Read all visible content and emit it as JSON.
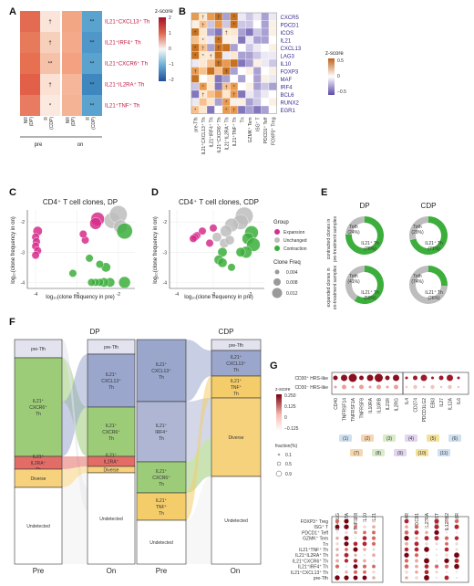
{
  "panels": [
    "A",
    "B",
    "C",
    "D",
    "E",
    "F",
    "G"
  ],
  "colors": {
    "red": "#c0143c",
    "purple": "#3a2a8a",
    "expansion": "#d62d8c",
    "unchanged": "#bdbdbd",
    "contraction": "#3cae3c",
    "pre_tfh": "#e2e3ef",
    "cxcl13": "#9aa6cc",
    "irf4": "#aeb6d4",
    "cxcr6": "#9ccc78",
    "il2ra": "#e36d66",
    "tnf": "#f4cd6a",
    "diverse": "#f6d27c",
    "undetected": "#ffffff"
  },
  "panelA": {
    "legend_title": "z-score",
    "legend_ticks": [
      "2",
      "1",
      "0",
      "−1",
      "−2"
    ],
    "rows": [
      {
        "label": "IL21⁺CXCL13⁺ Th",
        "cells": [
          "#e36b52",
          "#fbe4da",
          "#f3a684",
          "#5aa3cf"
        ],
        "marks": [
          "",
          "†",
          "",
          "**"
        ]
      },
      {
        "label": "IL21⁺IRF4⁺ Th",
        "cells": [
          "#e87a5c",
          "#f7d0bb",
          "#f4aa8a",
          "#4f97c8"
        ],
        "marks": [
          "",
          "†",
          "",
          "**"
        ]
      },
      {
        "label": "IL21⁺CXCR6⁺ Th",
        "cells": [
          "#e6704f",
          "#f5c2a9",
          "#f3a181",
          "#5aa3cf"
        ],
        "marks": [
          "",
          "**",
          "",
          "**"
        ]
      },
      {
        "label": "IL21⁺IL2RA⁺ Th",
        "cells": [
          "#e25f48",
          "#fbe1d3",
          "#f6b69a",
          "#3e87bf"
        ],
        "marks": [
          "",
          "†",
          "",
          "**"
        ]
      },
      {
        "label": "IL21⁺TNF⁺ Th",
        "cells": [
          "#e97c60",
          "#fbe9e0",
          "#f5b396",
          "#5aa3cf"
        ],
        "marks": [
          "",
          "*",
          "",
          "**"
        ]
      }
    ],
    "xlabels": [
      "NR\n(DP)",
      "R\n(CDP)",
      "NR\n(DP)",
      "R\n(CDP)"
    ],
    "groups": [
      "pre",
      "on"
    ]
  },
  "panelB": {
    "legend_title": "z-score",
    "legend_ticks": [
      "0.5",
      "0",
      "−0.5"
    ],
    "genes": [
      "CXCR5",
      "PDCD1",
      "ICOS",
      "IL21",
      "CXCL13",
      "LAG3",
      "IL10",
      "FOXP3",
      "MAF",
      "IRF4",
      "BCL6",
      "RUNX2",
      "EGR1"
    ],
    "columns": [
      "pre-Tfh",
      "IL21⁺CXCL13⁺ Th",
      "IL21⁺IRF4⁺ Th",
      "IL21⁺CXCR6⁺ Th",
      "IL21⁺IL2RA⁺ Th",
      "IL21⁺TNF⁺ Th",
      "Tn",
      "GZMK⁺ Tem",
      "ISG⁺ T",
      "PDCD1⁺ Teff",
      "FOXP3⁺ Treg"
    ]
  },
  "panelC": {
    "title": "CD4⁺ T cell clones, DP",
    "xlabel": "log₁₀(clone frequency in pre)",
    "ylabel": "log₁₀(clone frequency in on)"
  },
  "panelD": {
    "title": "CD4⁺ T cell clones, CDP",
    "xlabel": "log₁₀(clone frequency in pre)",
    "ylabel": "log₁₀(clone frequency in on)"
  },
  "legendCD": {
    "group_title": "Group",
    "groups": [
      "Expansion",
      "Unchanged",
      "Contraction"
    ],
    "freq_title": "Clone Freq",
    "freqs": [
      "0.004",
      "0.008",
      "0.012"
    ]
  },
  "chart_data": [
    {
      "type": "scatter",
      "title": "CD4⁺ T cell clones, DP",
      "xlabel": "log₁₀(clone frequency in pre)",
      "ylabel": "log₁₀(clone frequency in on)",
      "xlim": [
        -4.2,
        -1.6
      ],
      "ylim": [
        -4.2,
        -1.6
      ],
      "x_ticks": [
        "-4",
        "-3",
        "-2"
      ],
      "y_ticks": [
        "-2",
        "-3",
        "-4"
      ],
      "series": [
        {
          "name": "Expansion",
          "points": [
            [
              -2.5,
              -1.9,
              0.006
            ],
            [
              -2.55,
              -2.05,
              0.004
            ],
            [
              -3.95,
              -2.3,
              0.002
            ],
            [
              -4.0,
              -2.5,
              0.001
            ],
            [
              -3.98,
              -2.65,
              0.001
            ],
            [
              -4.0,
              -2.8,
              0.001
            ],
            [
              -3.95,
              -2.95,
              0.001
            ],
            [
              -4.0,
              -3.1,
              0.001
            ],
            [
              -2.8,
              -2.6,
              0.001
            ],
            [
              -2.85,
              -2.4,
              0.001
            ]
          ]
        },
        {
          "name": "Unchanged",
          "points": [
            [
              -2.15,
              -1.95,
              0.009
            ],
            [
              -2.0,
              -1.75,
              0.012
            ],
            [
              -1.95,
              -2.15,
              0.006
            ]
          ]
        },
        {
          "name": "Contraction",
          "points": [
            [
              -1.85,
              -2.3,
              0.009
            ],
            [
              -1.85,
              -4.0,
              0.004
            ],
            [
              -2.2,
              -4.0,
              0.002
            ],
            [
              -2.35,
              -4.0,
              0.002
            ],
            [
              -2.45,
              -4.0,
              0.001
            ],
            [
              -2.55,
              -4.0,
              0.001
            ],
            [
              -2.65,
              -4.0,
              0.001
            ],
            [
              -2.3,
              -3.5,
              0.002
            ],
            [
              -2.45,
              -3.4,
              0.001
            ],
            [
              -3.1,
              -3.7,
              0.001
            ],
            [
              -2.7,
              -3.2,
              0.001
            ]
          ]
        }
      ]
    },
    {
      "type": "scatter",
      "title": "CD4⁺ T cell clones, CDP",
      "xlabel": "log₁₀(clone frequency in pre)",
      "ylabel": "log₁₀(clone frequency in on)",
      "xlim": [
        -4.2,
        -1.6
      ],
      "ylim": [
        -4.2,
        -1.6
      ],
      "x_ticks": [
        "-4",
        "-3",
        "-2"
      ],
      "y_ticks": [
        "-2",
        "-3",
        "-4"
      ],
      "series": [
        {
          "name": "Expansion",
          "points": [
            [
              -3.3,
              -2.3,
              0.001
            ],
            [
              -3.45,
              -2.45,
              0.001
            ],
            [
              -3.5,
              -2.5,
              0.001
            ],
            [
              -3.0,
              -2.2,
              0.001
            ],
            [
              -3.1,
              -2.7,
              0.001
            ],
            [
              -3.55,
              -2.55,
              0.001
            ]
          ]
        },
        {
          "name": "Unchanged",
          "points": [
            [
              -2.15,
              -1.8,
              0.012
            ],
            [
              -2.25,
              -2.0,
              0.008
            ],
            [
              -2.5,
              -2.1,
              0.006
            ],
            [
              -2.65,
              -2.3,
              0.004
            ],
            [
              -2.9,
              -2.5,
              0.002
            ],
            [
              -2.7,
              -2.7,
              0.002
            ],
            [
              -2.55,
              -2.6,
              0.002
            ]
          ]
        },
        {
          "name": "Contraction",
          "points": [
            [
              -1.95,
              -2.35,
              0.006
            ],
            [
              -2.05,
              -2.55,
              0.004
            ],
            [
              -1.9,
              -2.75,
              0.006
            ],
            [
              -2.1,
              -3.0,
              0.004
            ],
            [
              -2.25,
              -3.0,
              0.002
            ],
            [
              -2.75,
              -3.0,
              0.002
            ],
            [
              -2.85,
              -3.25,
              0.002
            ],
            [
              -2.75,
              -3.35,
              0.002
            ],
            [
              -2.5,
              -3.5,
              0.001
            ]
          ]
        }
      ]
    },
    {
      "type": "pie",
      "title": "DP",
      "rows": [
        "contracted clones in pre-treatment samples",
        "expanded clones in on-treatment samples"
      ],
      "slices": [
        [
          {
            "label": "Toth (24%)",
            "value": 24
          },
          {
            "label": "IL21⁺ Th (76%)",
            "value": 76
          }
        ],
        [
          {
            "label": "Toth (41%)",
            "value": 41
          },
          {
            "label": "IL21⁺ Th (59%)",
            "value": 59
          }
        ]
      ]
    },
    {
      "type": "pie",
      "title": "CDP",
      "rows": [
        "contracted clones in pre-treatment samples",
        "expanded clones in on-treatment samples"
      ],
      "slices": [
        [
          {
            "label": "Toth (29%)",
            "value": 29
          },
          {
            "label": "IL21⁺ Th (71%)",
            "value": 71
          }
        ],
        [
          {
            "label": "Toth (74%)",
            "value": 74
          },
          {
            "label": "IL21⁺ Th (26%)",
            "value": 26
          }
        ]
      ]
    }
  ],
  "panelE": {
    "columns": [
      "DP",
      "CDP"
    ],
    "row_labels": [
      "contracted clones in\npre-treatment samples",
      "expanded clones in\non-treatment samples"
    ],
    "toth_labels": [
      [
        "Toth",
        "(24%)"
      ],
      [
        "Toth",
        "(29%)"
      ],
      [
        "Toth",
        "(41%)"
      ],
      [
        "Toth",
        "(74%)"
      ]
    ],
    "il21_labels": [
      [
        "IL21⁺ Th",
        "(76%)"
      ],
      [
        "IL21⁺ Th",
        "(71%)"
      ],
      [
        "IL21⁺ Th",
        "(59%)"
      ],
      [
        "IL21⁺ Th",
        "(26%)"
      ]
    ]
  },
  "panelF": {
    "dp_title": "DP",
    "cdp_title": "CDP",
    "pre": "Pre",
    "on": "On",
    "dp_pre": [
      "pre-Tfh",
      "IL21⁺ CXCR6⁺ Th",
      "IL21⁺ IL2RA⁺ Th",
      "Diverse",
      "Undetected"
    ],
    "dp_on": [
      "pre-Tfh",
      "IL21⁺ CXCL13⁺ Th",
      "IL21⁺ CXCR6⁺ Th",
      "IL21⁺ IL2RA⁺ Th",
      "Diverse",
      "Undetected"
    ],
    "cdp_pre": [
      "IL21⁺ CXCL13⁺ Th",
      "IL21⁺ IRF4⁺ Th",
      "IL21⁺ CXCR6⁺ Th",
      "IL21⁺ TNF⁺ Th",
      "Undetected"
    ],
    "cdp_on": [
      "pre-Tfh",
      "IL21⁺ CXCL13⁺ Th",
      "IL21⁺ TNF⁺ Th",
      "Diverse",
      "Undetected"
    ]
  },
  "panelG": {
    "top_rows": [
      "CD30⁺ HRS-like",
      "CD30⁻ HRS-like"
    ],
    "left_genes": [
      "CD40",
      "TNFRSF14",
      "TNFRSF1A",
      "TNFRSF8",
      "IL10RA",
      "IL10RB",
      "IL21R",
      "IL2RG"
    ],
    "right_genes": [
      "IL4",
      "CD274",
      "PDCD1LG2",
      "EBI3",
      "IL27",
      "IL12A",
      "IL6"
    ],
    "left_genes_bottom": [
      "CD40LG",
      "LTA",
      "TNFSF8",
      "IL10",
      "IL21"
    ],
    "right_genes_bottom": [
      "IL4R",
      "PDCD1",
      "IL27RA",
      "IL6ST",
      "IL12RB2",
      "IL6R"
    ],
    "bottom_rows": [
      "FOXP3⁺ Treg",
      "ISG⁺ T",
      "PDCD1⁺ Teff",
      "GZMK⁺ Tem",
      "Tn",
      "IL21⁺TNF⁺ Th",
      "IL21⁺IL2RA⁺ Th",
      "IL21⁺CXCR6⁺ Th",
      "IL21⁺IRF4⁺ Th",
      "IL21⁺CXCL13⁺ Th",
      "pre-Tfh"
    ],
    "zscore_title": "z-score",
    "zscore_ticks": [
      "0.250",
      "0.125",
      "0",
      "−0.125"
    ],
    "fraction_title": "fraction(%)",
    "fraction_ticks": [
      "0.1",
      "0.5",
      "0.9"
    ],
    "pair_badges": [
      "(1)",
      "(2)",
      "(3)",
      "(4)",
      "(5)",
      "(6)",
      "(7)",
      "(8)",
      "(9)",
      "(10)",
      "(11)"
    ]
  }
}
